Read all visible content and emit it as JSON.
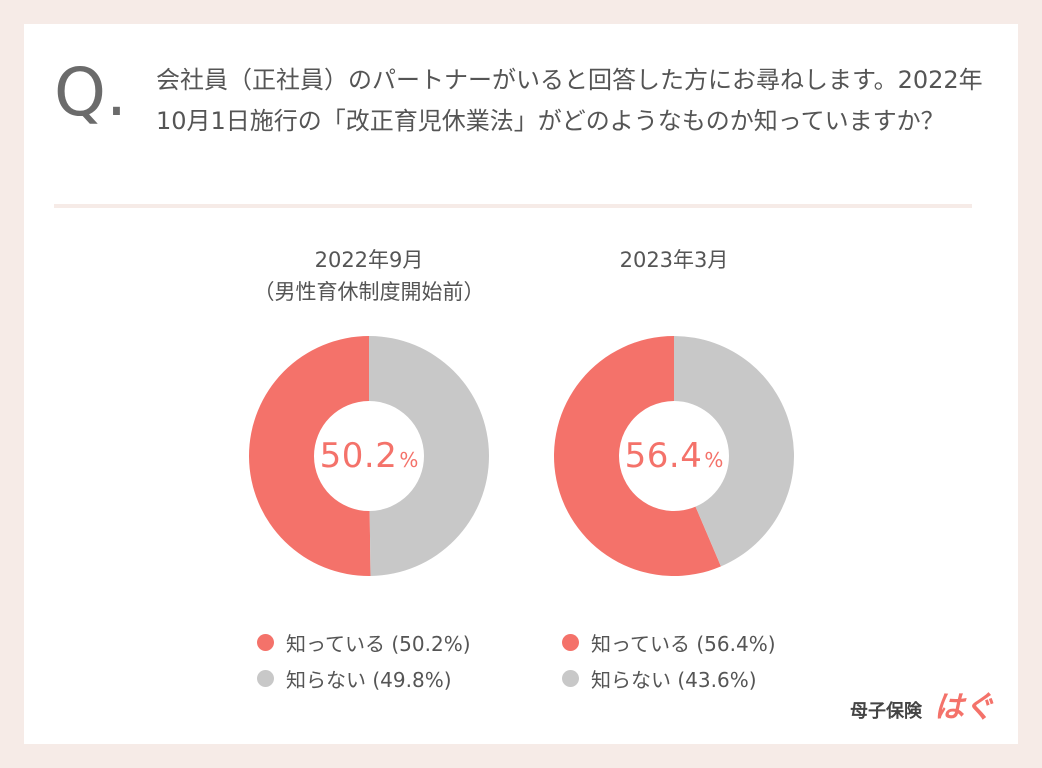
{
  "question": {
    "mark": "Q.",
    "text": "会社員（正社員）のパートナーがいると回答した方にお尋ねします。2022年10月1日施行の「改正育児休業法」がどのようなものか知っていますか？"
  },
  "colors": {
    "known": "#f4726a",
    "unknown": "#c8c8c8",
    "background": "#f6ebe7"
  },
  "chart_data": [
    {
      "type": "pie",
      "title": "2022年9月\n（男性育休制度開始前）",
      "center_value": "50.2",
      "center_unit": "%",
      "categories": [
        "知っている",
        "知らない"
      ],
      "values": [
        50.2,
        49.8
      ],
      "legend": [
        "知っている (50.2%)",
        "知らない (49.8%)"
      ]
    },
    {
      "type": "pie",
      "title": "2023年3月",
      "center_value": "56.4",
      "center_unit": "%",
      "categories": [
        "知っている",
        "知らない"
      ],
      "values": [
        56.4,
        43.6
      ],
      "legend": [
        "知っている (56.4%)",
        "知らない (43.6%)"
      ]
    }
  ],
  "brand": {
    "name": "母子保険",
    "logo": "はぐ"
  }
}
